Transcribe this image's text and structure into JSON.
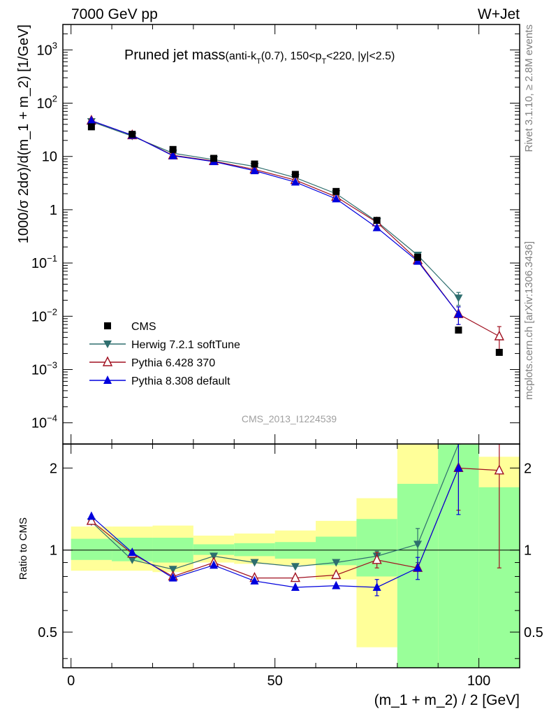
{
  "header": {
    "left": "7000 GeV pp",
    "right": "W+Jet"
  },
  "title": {
    "main": "Pruned jet mass",
    "cut_open": "(anti-k",
    "cut_sub": "T",
    "cut_mid": "(0.7), 150<p",
    "cut_sub2": "T",
    "cut_close": "<220, |y|<2.5)"
  },
  "side": {
    "rivet": "Rivet 3.1.10, ≥ 2.8M events",
    "mcplots": "mcplots.cern.ch [arXiv:1306.3436]"
  },
  "watermark": "CMS_2013_I1224539",
  "axes": {
    "ylabel_top": "1000/σ 2dσ)/d(m_1 + m_2) [1/GeV]",
    "ylabel_bottom": "Ratio to CMS",
    "xlabel": "(m_1 + m_2) / 2 [GeV]",
    "x_ticks": [
      "0",
      "50",
      "100"
    ],
    "y_top_ticks": [
      {
        "base": "10",
        "exp": "3",
        "value": 1000
      },
      {
        "base": "10",
        "exp": "2",
        "value": 100
      },
      {
        "base": "10",
        "exp": "",
        "value": 10
      },
      {
        "base": "1",
        "exp": "",
        "value": 1
      },
      {
        "base": "10",
        "exp": "−1",
        "value": 0.1
      },
      {
        "base": "10",
        "exp": "−2",
        "value": 0.01
      },
      {
        "base": "10",
        "exp": "−3",
        "value": 0.001
      },
      {
        "base": "10",
        "exp": "−4",
        "value": 0.0001
      }
    ],
    "y_bottom_ticks": [
      {
        "label": "0.5",
        "value": 0.5
      },
      {
        "label": "1",
        "value": 1
      },
      {
        "label": "2",
        "value": 2
      }
    ]
  },
  "legend": [
    {
      "key": "cms",
      "label": "CMS"
    },
    {
      "key": "herwig",
      "label": "Herwig 7.2.1 softTune"
    },
    {
      "key": "py6",
      "label": "Pythia 6.428 370"
    },
    {
      "key": "py8",
      "label": "Pythia 8.308 default"
    }
  ],
  "colors": {
    "cms": "#000000",
    "herwig": "#2e6e6e",
    "py6": "#a01020",
    "py8": "#0000dd",
    "band_inner": "#99ff99",
    "band_outer": "#ffff99"
  },
  "chart_data": {
    "type": "line",
    "log_y": true,
    "xlim": [
      -2,
      110
    ],
    "ylim_top": [
      4e-05,
      3000
    ],
    "ylim_bottom": [
      0.37,
      2.45
    ],
    "grid": false,
    "legend_position": "lower-left",
    "bins": [
      [
        0,
        10
      ],
      [
        10,
        20
      ],
      [
        20,
        30
      ],
      [
        30,
        40
      ],
      [
        40,
        50
      ],
      [
        50,
        60
      ],
      [
        60,
        70
      ],
      [
        70,
        80
      ],
      [
        80,
        90
      ],
      [
        90,
        100
      ],
      [
        100,
        110
      ]
    ],
    "x": [
      5,
      15,
      25,
      35,
      45,
      55,
      65,
      75,
      85,
      95,
      105
    ],
    "series": [
      {
        "key": "cms",
        "name": "CMS",
        "values": [
          36,
          26,
          13.5,
          9.2,
          7.2,
          4.6,
          2.2,
          0.63,
          0.128,
          0.0055,
          0.0021
        ]
      },
      {
        "key": "herwig",
        "name": "Herwig 7.2.1 softTune",
        "values": [
          45,
          24,
          11.5,
          8.7,
          6.5,
          4.0,
          2.0,
          0.6,
          0.14,
          0.022,
          null
        ],
        "errors": [
          0,
          0,
          0,
          0,
          0,
          0,
          0,
          0,
          0,
          0.006,
          null
        ]
      },
      {
        "key": "py6",
        "name": "Pythia 6.428 370",
        "values": [
          47,
          25,
          10.5,
          8.2,
          5.7,
          3.6,
          1.75,
          0.58,
          0.113,
          0.011,
          0.0042
        ],
        "errors": [
          0,
          0,
          0,
          0,
          0,
          0,
          0,
          0,
          0,
          0.004,
          0.0022
        ]
      },
      {
        "key": "py8",
        "name": "Pythia 8.308 default",
        "values": [
          47,
          25,
          10.3,
          8.0,
          5.4,
          3.3,
          1.6,
          0.46,
          0.108,
          0.011,
          null
        ],
        "errors": [
          0,
          0,
          0,
          0,
          0,
          0,
          0,
          0,
          0,
          0.004,
          null
        ]
      }
    ],
    "ratio": [
      {
        "key": "herwig",
        "values": [
          1.27,
          0.92,
          0.85,
          0.95,
          0.9,
          0.87,
          0.9,
          0.95,
          1.05,
          3.0,
          null
        ],
        "errors": [
          0,
          0,
          0,
          0,
          0,
          0,
          0,
          0.04,
          0.15,
          0,
          null
        ]
      },
      {
        "key": "py6",
        "values": [
          1.28,
          0.97,
          0.8,
          0.9,
          0.79,
          0.79,
          0.81,
          0.92,
          0.86,
          2.0,
          1.96
        ],
        "errors": [
          0,
          0,
          0,
          0,
          0,
          0,
          0,
          0.06,
          0,
          0.6,
          1.1
        ]
      },
      {
        "key": "py8",
        "values": [
          1.33,
          0.98,
          0.79,
          0.88,
          0.77,
          0.73,
          0.74,
          0.73,
          0.86,
          2.0,
          null
        ],
        "errors": [
          0,
          0,
          0,
          0,
          0,
          0,
          0,
          0.05,
          0.08,
          0.65,
          null
        ]
      }
    ],
    "bands": {
      "inner": [
        [
          0.92,
          1.1
        ],
        [
          0.91,
          1.11
        ],
        [
          0.9,
          1.11
        ],
        [
          0.96,
          1.05
        ],
        [
          0.95,
          1.06
        ],
        [
          0.93,
          1.07
        ],
        [
          0.88,
          1.12
        ],
        [
          0.8,
          1.3
        ],
        [
          0.37,
          1.75
        ],
        [
          0.37,
          2.45
        ],
        [
          0.37,
          1.7
        ]
      ],
      "outer": [
        [
          0.84,
          1.22
        ],
        [
          0.84,
          1.22
        ],
        [
          0.83,
          1.23
        ],
        [
          0.9,
          1.13
        ],
        [
          0.89,
          1.15
        ],
        [
          0.88,
          1.18
        ],
        [
          0.78,
          1.28
        ],
        [
          0.44,
          1.55
        ],
        [
          0.37,
          2.45
        ],
        [
          0.37,
          2.45
        ],
        [
          0.37,
          2.2
        ]
      ]
    }
  }
}
